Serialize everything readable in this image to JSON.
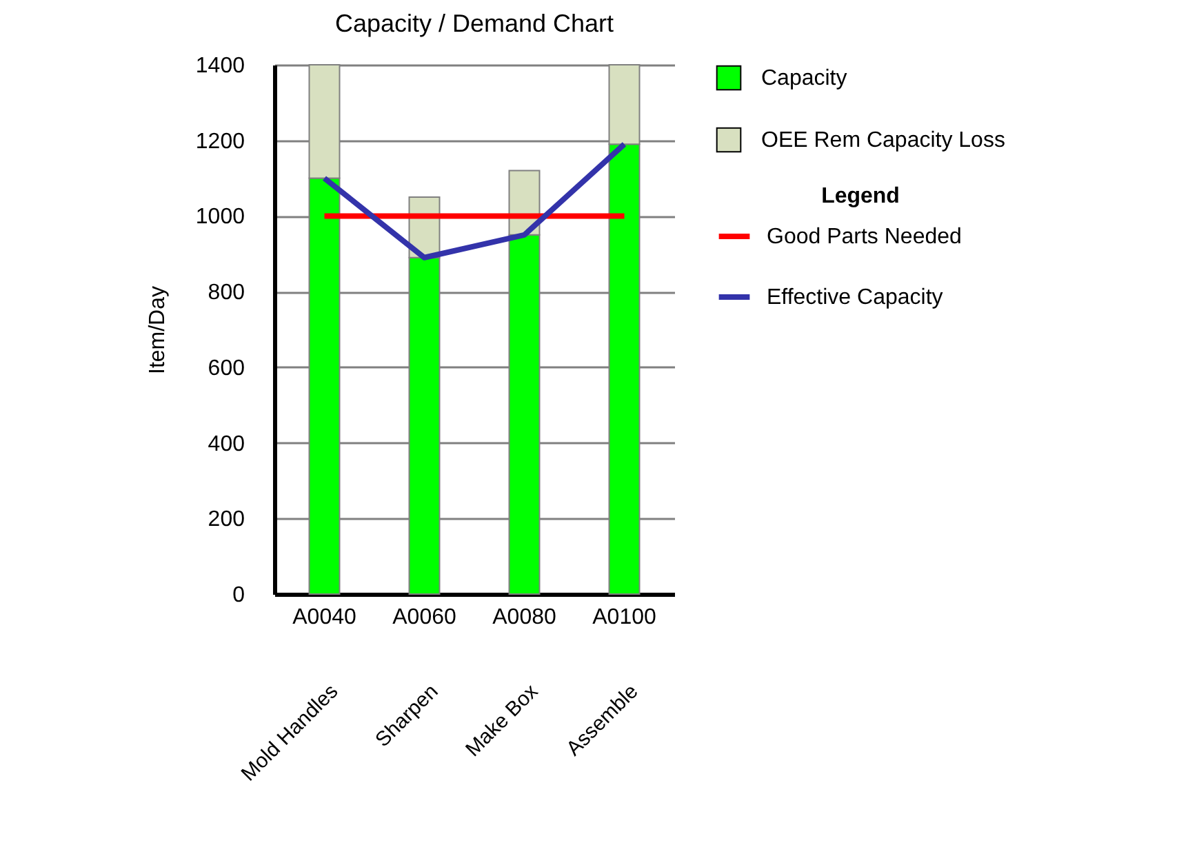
{
  "chart_data": {
    "type": "bar",
    "title": "Capacity / Demand Chart",
    "ylabel": "Item/Day",
    "legend_title": "Legend",
    "categories": [
      "A0040",
      "A0060",
      "A0080",
      "A0100"
    ],
    "series": [
      {
        "name": "Good Parts Needed",
        "type": "line",
        "color": "#ff0000",
        "values": [
          1000,
          1000,
          1000,
          1000
        ]
      },
      {
        "name": "Effective Capacity",
        "type": "line",
        "color": "#3333aa",
        "values": [
          1100,
          890,
          950,
          1190
        ]
      },
      {
        "name": "Capacity",
        "color": "#00ff00",
        "values": [
          1100,
          890,
          950,
          1190
        ]
      },
      {
        "name": "OEE Rem Capacity Loss",
        "color": "#d8e0c0",
        "values": [
          300,
          160,
          170,
          210
        ]
      }
    ],
    "stacked": true,
    "ylim": [
      0,
      1400
    ],
    "yticks": [
      0,
      200,
      400,
      600,
      800,
      1000,
      1200,
      1400
    ],
    "grid": "y",
    "legend": "right",
    "annotations": [
      "Mold Handles",
      "Sharpen",
      "Make Box",
      "Assemble"
    ]
  }
}
